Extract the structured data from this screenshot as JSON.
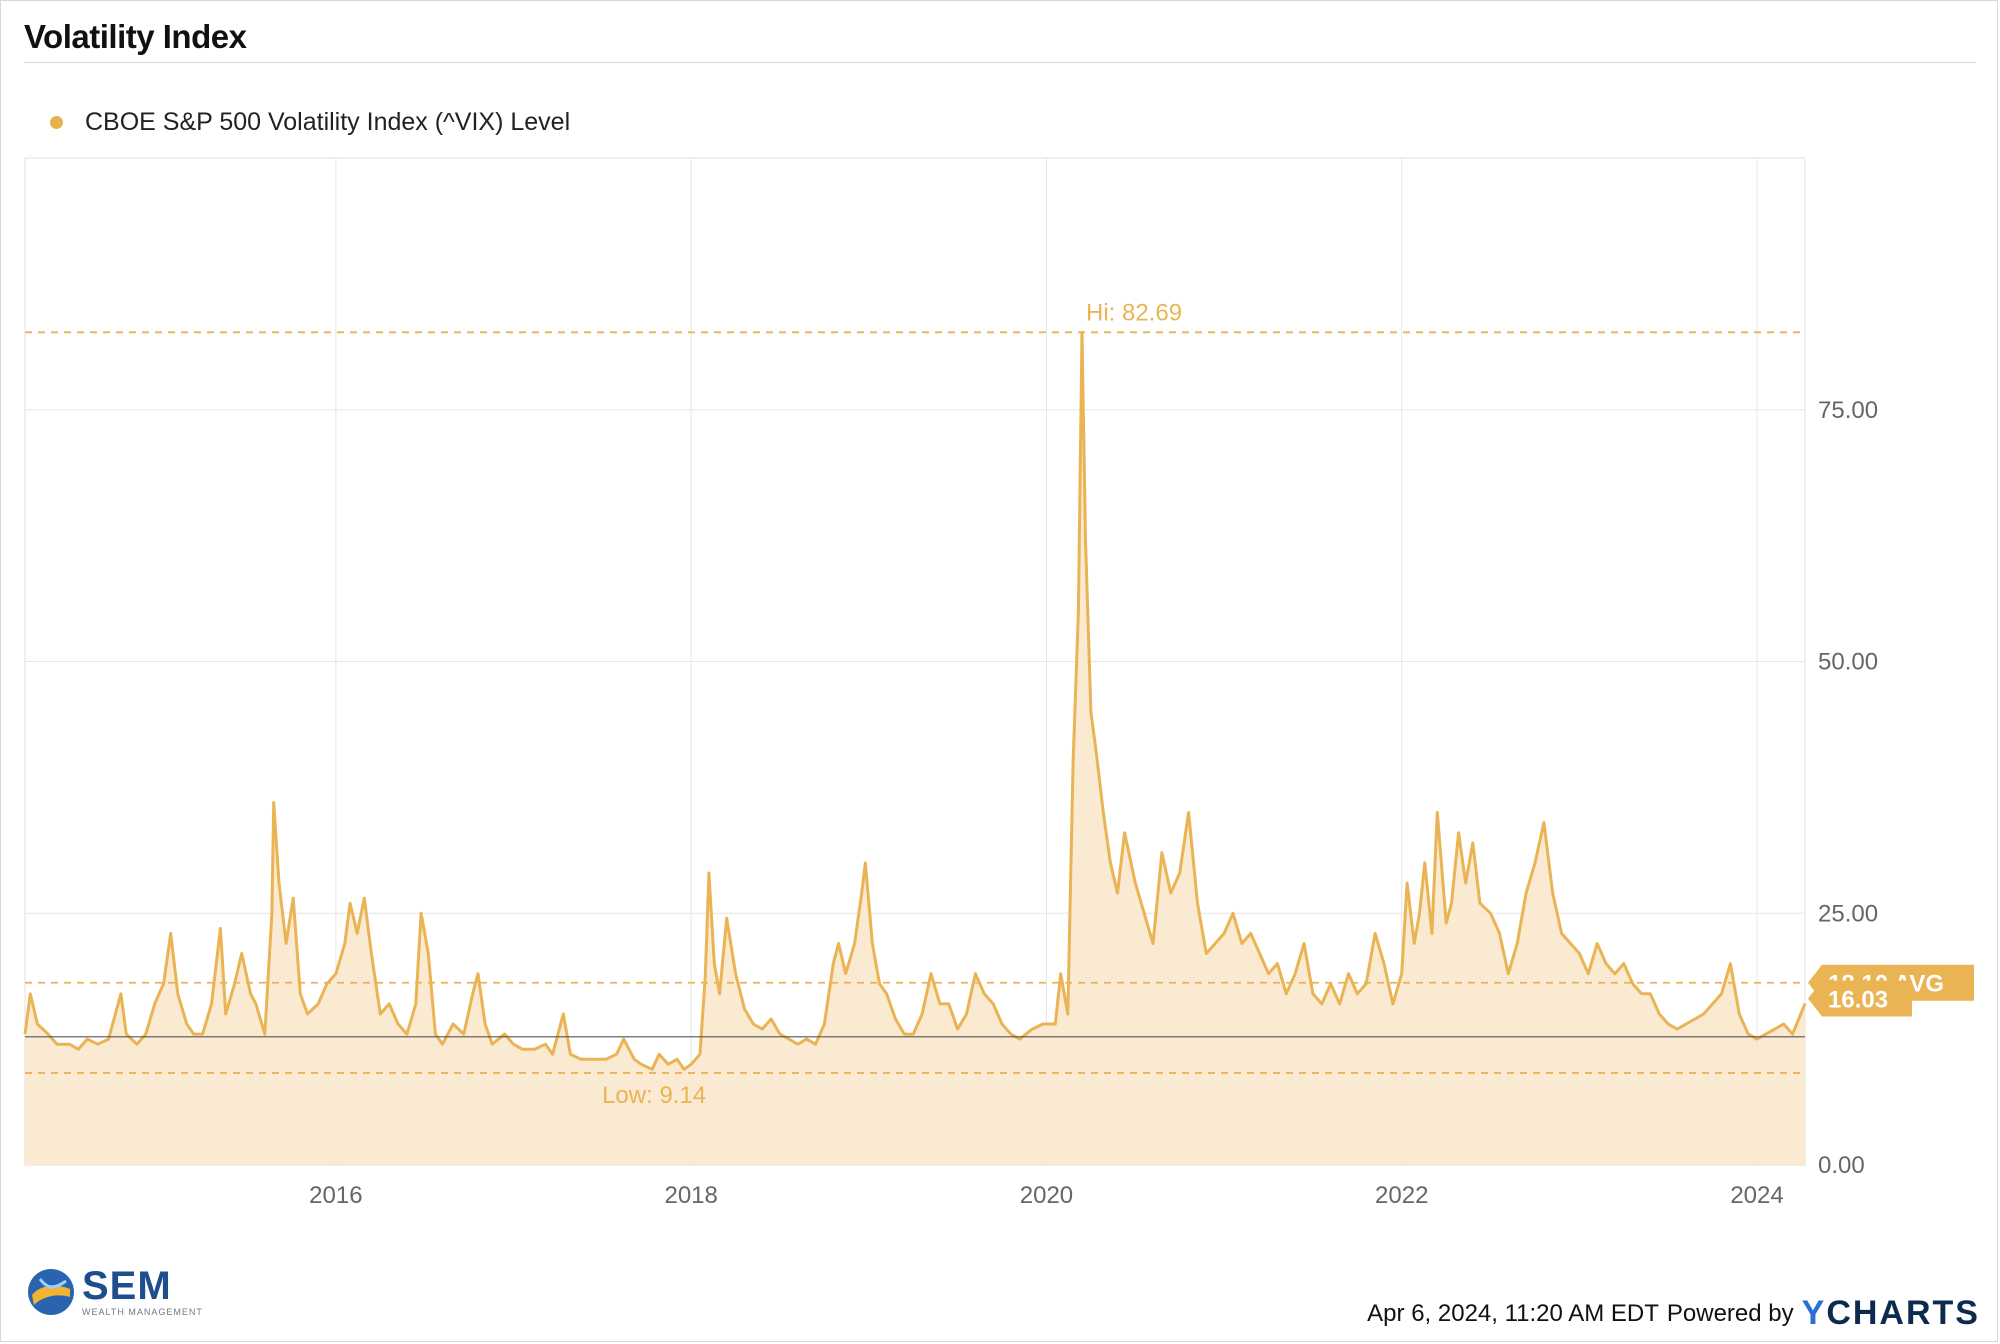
{
  "title": "Volatility Index",
  "colors": {
    "series": "#eab454",
    "fill": "#f8e8cc",
    "grid": "#e6e6e6",
    "axis_text": "#666666",
    "baseline": "#555555",
    "legend_dot": "#e7b24e"
  },
  "footer": {
    "timestamp": "Apr 6, 2024, 11:20 AM EDT",
    "powered_by": "Powered by",
    "ycharts_y": "Y",
    "ycharts_rest": "CHARTS"
  },
  "brand": {
    "name": "SEM",
    "subtitle": "WEALTH MANAGEMENT",
    "icon": "sem-globe-icon"
  },
  "chart_data": {
    "type": "area",
    "title": "Volatility Index",
    "legend": {
      "placement": "top-left",
      "entries": [
        "CBOE S&P 500 Volatility Index (^VIX) Level"
      ]
    },
    "x_ticks": [
      "2016",
      "2018",
      "2020",
      "2022",
      "2024"
    ],
    "y_ticks": [
      "0.00",
      "25.00",
      "50.00",
      "75.00"
    ],
    "xlim": [
      2014.25,
      2024.27
    ],
    "ylim": [
      0,
      100
    ],
    "grid": true,
    "annotations": {
      "high": {
        "label": "Hi: 82.69",
        "value": 82.69
      },
      "low": {
        "label": "Low: 9.14",
        "value": 9.14
      },
      "average": {
        "label": "18.10 AVG",
        "value": 18.1
      },
      "latest": {
        "label": "16.03",
        "value": 16.03
      }
    },
    "series": [
      {
        "name": "CBOE S&P 500 Volatility Index (^VIX) Level",
        "points": [
          [
            2014.25,
            13
          ],
          [
            2014.28,
            17
          ],
          [
            2014.32,
            14
          ],
          [
            2014.38,
            13
          ],
          [
            2014.43,
            12
          ],
          [
            2014.5,
            12
          ],
          [
            2014.55,
            11.5
          ],
          [
            2014.6,
            12.5
          ],
          [
            2014.66,
            12
          ],
          [
            2014.72,
            12.5
          ],
          [
            2014.79,
            17
          ],
          [
            2014.82,
            13
          ],
          [
            2014.88,
            12
          ],
          [
            2014.93,
            13
          ],
          [
            2014.98,
            16
          ],
          [
            2015.03,
            18
          ],
          [
            2015.07,
            23
          ],
          [
            2015.11,
            17
          ],
          [
            2015.16,
            14
          ],
          [
            2015.2,
            13
          ],
          [
            2015.25,
            13
          ],
          [
            2015.3,
            16
          ],
          [
            2015.35,
            23.5
          ],
          [
            2015.38,
            15
          ],
          [
            2015.43,
            18
          ],
          [
            2015.47,
            21
          ],
          [
            2015.52,
            17
          ],
          [
            2015.55,
            16
          ],
          [
            2015.6,
            13
          ],
          [
            2015.64,
            25
          ],
          [
            2015.65,
            36
          ],
          [
            2015.68,
            28
          ],
          [
            2015.72,
            22
          ],
          [
            2015.76,
            26.5
          ],
          [
            2015.8,
            17
          ],
          [
            2015.84,
            15
          ],
          [
            2015.9,
            16
          ],
          [
            2015.95,
            18
          ],
          [
            2016.0,
            19
          ],
          [
            2016.05,
            22
          ],
          [
            2016.08,
            26
          ],
          [
            2016.12,
            23
          ],
          [
            2016.16,
            26.5
          ],
          [
            2016.2,
            21
          ],
          [
            2016.25,
            15
          ],
          [
            2016.3,
            16
          ],
          [
            2016.35,
            14
          ],
          [
            2016.4,
            13
          ],
          [
            2016.45,
            16
          ],
          [
            2016.48,
            25
          ],
          [
            2016.52,
            21
          ],
          [
            2016.56,
            13
          ],
          [
            2016.6,
            12
          ],
          [
            2016.66,
            14
          ],
          [
            2016.72,
            13
          ],
          [
            2016.77,
            17
          ],
          [
            2016.8,
            19
          ],
          [
            2016.84,
            14
          ],
          [
            2016.88,
            12
          ],
          [
            2016.95,
            13
          ],
          [
            2017.0,
            12
          ],
          [
            2017.05,
            11.5
          ],
          [
            2017.12,
            11.5
          ],
          [
            2017.18,
            12
          ],
          [
            2017.22,
            11
          ],
          [
            2017.28,
            15
          ],
          [
            2017.32,
            11
          ],
          [
            2017.38,
            10.5
          ],
          [
            2017.45,
            10.5
          ],
          [
            2017.52,
            10.5
          ],
          [
            2017.58,
            11
          ],
          [
            2017.62,
            12.5
          ],
          [
            2017.68,
            10.5
          ],
          [
            2017.72,
            10
          ],
          [
            2017.78,
            9.5
          ],
          [
            2017.82,
            11
          ],
          [
            2017.87,
            10
          ],
          [
            2017.92,
            10.5
          ],
          [
            2017.96,
            9.5
          ],
          [
            2018.0,
            10
          ],
          [
            2018.05,
            11
          ],
          [
            2018.08,
            19
          ],
          [
            2018.1,
            29
          ],
          [
            2018.13,
            20
          ],
          [
            2018.16,
            17
          ],
          [
            2018.2,
            24.5
          ],
          [
            2018.25,
            19
          ],
          [
            2018.3,
            15.5
          ],
          [
            2018.35,
            14
          ],
          [
            2018.4,
            13.5
          ],
          [
            2018.45,
            14.5
          ],
          [
            2018.5,
            13
          ],
          [
            2018.55,
            12.5
          ],
          [
            2018.6,
            12
          ],
          [
            2018.65,
            12.5
          ],
          [
            2018.7,
            12
          ],
          [
            2018.75,
            14
          ],
          [
            2018.8,
            20
          ],
          [
            2018.83,
            22
          ],
          [
            2018.87,
            19
          ],
          [
            2018.92,
            22
          ],
          [
            2018.96,
            27
          ],
          [
            2018.98,
            30
          ],
          [
            2019.02,
            22
          ],
          [
            2019.06,
            18
          ],
          [
            2019.1,
            17
          ],
          [
            2019.15,
            14.5
          ],
          [
            2019.2,
            13
          ],
          [
            2019.25,
            13
          ],
          [
            2019.3,
            15
          ],
          [
            2019.35,
            19
          ],
          [
            2019.4,
            16
          ],
          [
            2019.45,
            16
          ],
          [
            2019.5,
            13.5
          ],
          [
            2019.55,
            15
          ],
          [
            2019.6,
            19
          ],
          [
            2019.65,
            17
          ],
          [
            2019.7,
            16
          ],
          [
            2019.75,
            14
          ],
          [
            2019.8,
            13
          ],
          [
            2019.85,
            12.5
          ],
          [
            2019.92,
            13.5
          ],
          [
            2019.98,
            14
          ],
          [
            2020.05,
            14
          ],
          [
            2020.08,
            19
          ],
          [
            2020.12,
            15
          ],
          [
            2020.15,
            40
          ],
          [
            2020.18,
            55
          ],
          [
            2020.2,
            82.69
          ],
          [
            2020.22,
            62
          ],
          [
            2020.25,
            45
          ],
          [
            2020.28,
            41
          ],
          [
            2020.32,
            35
          ],
          [
            2020.36,
            30
          ],
          [
            2020.4,
            27
          ],
          [
            2020.44,
            33
          ],
          [
            2020.5,
            28
          ],
          [
            2020.55,
            25
          ],
          [
            2020.6,
            22
          ],
          [
            2020.65,
            31
          ],
          [
            2020.7,
            27
          ],
          [
            2020.75,
            29
          ],
          [
            2020.8,
            35
          ],
          [
            2020.85,
            26
          ],
          [
            2020.9,
            21
          ],
          [
            2020.95,
            22
          ],
          [
            2021.0,
            23
          ],
          [
            2021.05,
            25
          ],
          [
            2021.1,
            22
          ],
          [
            2021.15,
            23
          ],
          [
            2021.2,
            21
          ],
          [
            2021.25,
            19
          ],
          [
            2021.3,
            20
          ],
          [
            2021.35,
            17
          ],
          [
            2021.4,
            19
          ],
          [
            2021.45,
            22
          ],
          [
            2021.5,
            17
          ],
          [
            2021.55,
            16
          ],
          [
            2021.6,
            18
          ],
          [
            2021.65,
            16
          ],
          [
            2021.7,
            19
          ],
          [
            2021.75,
            17
          ],
          [
            2021.8,
            18
          ],
          [
            2021.85,
            23
          ],
          [
            2021.9,
            20
          ],
          [
            2021.95,
            16
          ],
          [
            2022.0,
            19
          ],
          [
            2022.03,
            28
          ],
          [
            2022.07,
            22
          ],
          [
            2022.1,
            25
          ],
          [
            2022.13,
            30
          ],
          [
            2022.17,
            23
          ],
          [
            2022.2,
            35
          ],
          [
            2022.25,
            24
          ],
          [
            2022.28,
            26
          ],
          [
            2022.32,
            33
          ],
          [
            2022.36,
            28
          ],
          [
            2022.4,
            32
          ],
          [
            2022.44,
            26
          ],
          [
            2022.5,
            25
          ],
          [
            2022.55,
            23
          ],
          [
            2022.6,
            19
          ],
          [
            2022.65,
            22
          ],
          [
            2022.7,
            27
          ],
          [
            2022.75,
            30
          ],
          [
            2022.8,
            34
          ],
          [
            2022.85,
            27
          ],
          [
            2022.9,
            23
          ],
          [
            2022.95,
            22
          ],
          [
            2023.0,
            21
          ],
          [
            2023.05,
            19
          ],
          [
            2023.1,
            22
          ],
          [
            2023.15,
            20
          ],
          [
            2023.2,
            19
          ],
          [
            2023.25,
            20
          ],
          [
            2023.3,
            18
          ],
          [
            2023.35,
            17
          ],
          [
            2023.4,
            17
          ],
          [
            2023.45,
            15
          ],
          [
            2023.5,
            14
          ],
          [
            2023.55,
            13.5
          ],
          [
            2023.6,
            14
          ],
          [
            2023.65,
            14.5
          ],
          [
            2023.7,
            15
          ],
          [
            2023.75,
            16
          ],
          [
            2023.8,
            17
          ],
          [
            2023.85,
            20
          ],
          [
            2023.9,
            15
          ],
          [
            2023.95,
            13
          ],
          [
            2024.0,
            12.5
          ],
          [
            2024.05,
            13
          ],
          [
            2024.1,
            13.5
          ],
          [
            2024.15,
            14
          ],
          [
            2024.2,
            13
          ],
          [
            2024.27,
            16.03
          ]
        ]
      }
    ]
  }
}
